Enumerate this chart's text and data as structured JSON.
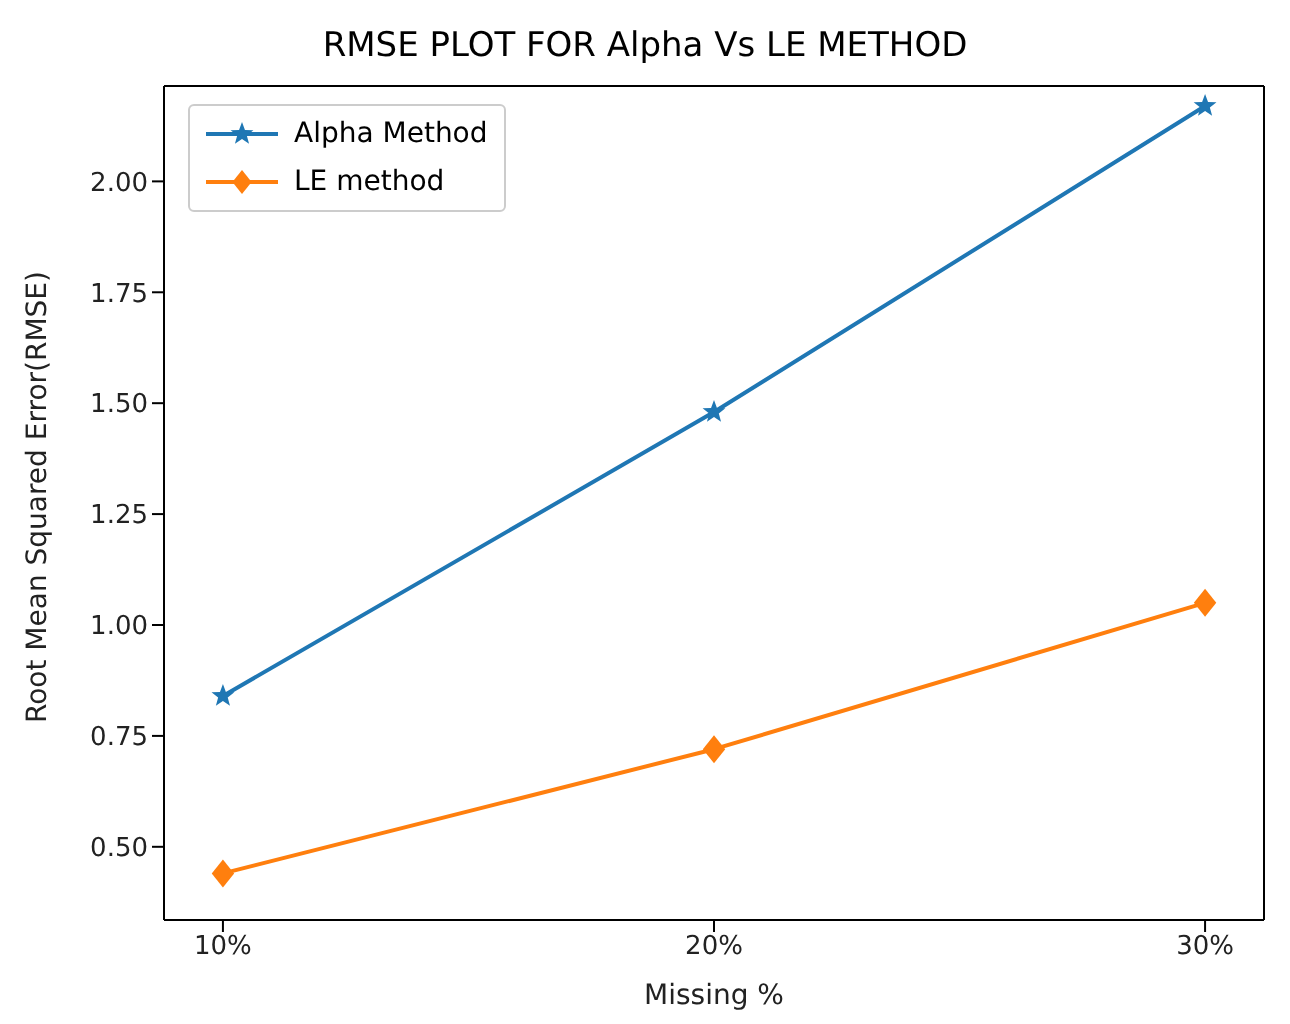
{
  "chart_data": {
    "type": "line",
    "title": "RMSE PLOT FOR Alpha Vs LE METHOD",
    "xlabel": "Missing %",
    "ylabel": "Root Mean Squared Error(RMSE)",
    "categories": [
      "10%",
      "20%",
      "30%"
    ],
    "series": [
      {
        "name": "Alpha Method",
        "color": "#1f77b4",
        "marker": "star",
        "values": [
          0.84,
          1.48,
          2.17
        ]
      },
      {
        "name": "LE method",
        "color": "#ff7f0e",
        "marker": "diamond",
        "values": [
          0.44,
          0.72,
          1.05
        ]
      }
    ],
    "ylim": [
      0.335,
      2.215
    ],
    "yticks": [
      {
        "value": 0.5,
        "label": "0.50"
      },
      {
        "value": 0.75,
        "label": "0.75"
      },
      {
        "value": 1.0,
        "label": "1.00"
      },
      {
        "value": 1.25,
        "label": "1.25"
      },
      {
        "value": 1.5,
        "label": "1.50"
      },
      {
        "value": 1.75,
        "label": "1.75"
      },
      {
        "value": 2.0,
        "label": "2.00"
      }
    ],
    "legend": "top left",
    "line_style": "solid"
  }
}
